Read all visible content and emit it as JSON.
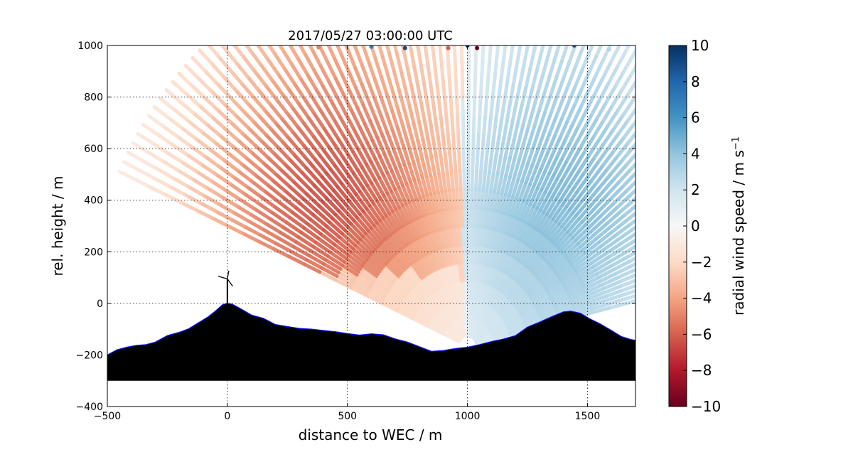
{
  "chart_data": {
    "type": "scatter",
    "title": "2017/05/27 03:00:00 UTC",
    "xlabel": "distance to WEC / m",
    "ylabel": "rel. height / m",
    "xlim": [
      -500,
      1700
    ],
    "ylim": [
      -400,
      1000
    ],
    "xticks": [
      -500,
      0,
      500,
      1000,
      1500
    ],
    "yticks": [
      -400,
      -200,
      0,
      200,
      400,
      600,
      800,
      1000
    ],
    "xtick_labels": [
      "−500",
      "0",
      "500",
      "1000",
      "1500"
    ],
    "ytick_labels": [
      "−400",
      "−200",
      "0",
      "200",
      "400",
      "600",
      "800",
      "1000"
    ],
    "grid": true,
    "colorbar": {
      "label": "radial wind speed / m s",
      "label_exponent": "−1",
      "range": [
        -10,
        10
      ],
      "colormap": "RdBu",
      "ticks": [
        -10,
        -8,
        -6,
        -4,
        -2,
        0,
        2,
        4,
        6,
        8,
        10
      ],
      "tick_labels": [
        "−10",
        "−8",
        "−6",
        "−4",
        "−2",
        "0",
        "2",
        "4",
        "6",
        "8",
        "10"
      ]
    },
    "scan": {
      "origin": [
        1000,
        -165
      ],
      "azimuth_range_deg": [
        14,
        155
      ],
      "ray_count": 96,
      "max_range_m": 1600,
      "velocity_field": {
        "negative_core": {
          "x": 420,
          "y": 420,
          "value": -6.5
        },
        "positive_core": {
          "x": 1420,
          "y": 440,
          "value": 4.5
        },
        "zero_crossing_x": 980
      }
    },
    "terrain": {
      "base_y": -300,
      "profile": [
        [
          -500,
          -200
        ],
        [
          -460,
          -180
        ],
        [
          -420,
          -170
        ],
        [
          -380,
          -163
        ],
        [
          -340,
          -160
        ],
        [
          -300,
          -150
        ],
        [
          -250,
          -125
        ],
        [
          -200,
          -112
        ],
        [
          -160,
          -98
        ],
        [
          -120,
          -75
        ],
        [
          -80,
          -52
        ],
        [
          -50,
          -30
        ],
        [
          -20,
          -5
        ],
        [
          0,
          0
        ],
        [
          20,
          -3
        ],
        [
          50,
          -18
        ],
        [
          100,
          -45
        ],
        [
          150,
          -58
        ],
        [
          200,
          -82
        ],
        [
          250,
          -90
        ],
        [
          300,
          -97
        ],
        [
          350,
          -100
        ],
        [
          400,
          -105
        ],
        [
          450,
          -110
        ],
        [
          500,
          -117
        ],
        [
          550,
          -123
        ],
        [
          600,
          -118
        ],
        [
          650,
          -122
        ],
        [
          700,
          -138
        ],
        [
          750,
          -150
        ],
        [
          800,
          -168
        ],
        [
          850,
          -186
        ],
        [
          900,
          -183
        ],
        [
          950,
          -175
        ],
        [
          1000,
          -170
        ],
        [
          1050,
          -160
        ],
        [
          1100,
          -148
        ],
        [
          1150,
          -138
        ],
        [
          1200,
          -125
        ],
        [
          1250,
          -92
        ],
        [
          1300,
          -73
        ],
        [
          1350,
          -52
        ],
        [
          1400,
          -33
        ],
        [
          1430,
          -30
        ],
        [
          1470,
          -38
        ],
        [
          1510,
          -60
        ],
        [
          1550,
          -78
        ],
        [
          1600,
          -105
        ],
        [
          1640,
          -128
        ],
        [
          1680,
          -140
        ],
        [
          1700,
          -143
        ]
      ],
      "fill_color": "#000000",
      "outline_color": "#1010ff"
    },
    "turbine": {
      "x": 0,
      "hub_height": 95,
      "rotor_radius": 40
    }
  }
}
